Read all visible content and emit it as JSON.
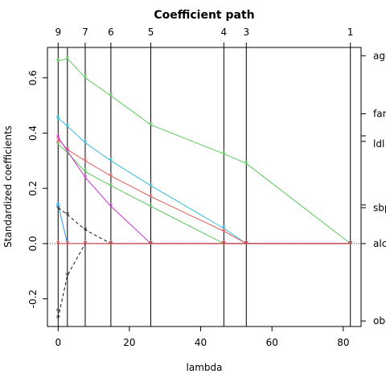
{
  "chart_data": {
    "type": "line",
    "title": "Coefficient path",
    "xlabel": "lambda",
    "ylabel": "Standardized coefficients",
    "xlim": [
      -3,
      85
    ],
    "ylim": [
      -0.3,
      0.71
    ],
    "x_ticks": [
      0,
      20,
      40,
      60,
      80
    ],
    "y_ticks": [
      -0.2,
      0.0,
      0.2,
      0.4,
      0.6
    ],
    "y_tick_labels": [
      "-0.2",
      "0.0",
      "0.2",
      "0.4",
      "0.6"
    ],
    "x_tick_labels": [
      "0",
      "20",
      "40",
      "60",
      "80"
    ],
    "breakpoints": [
      0,
      2.6,
      7.6,
      14.8,
      26,
      46.5,
      52.8,
      82
    ],
    "top_ticks": [
      {
        "lambda": 0,
        "label": "9"
      },
      {
        "lambda": 7.6,
        "label": "7"
      },
      {
        "lambda": 14.8,
        "label": "6"
      },
      {
        "lambda": 26,
        "label": "5"
      },
      {
        "lambda": 46.5,
        "label": "4"
      },
      {
        "lambda": 52.8,
        "label": "3"
      },
      {
        "lambda": 82,
        "label": "1"
      }
    ],
    "zero_line": true,
    "right_labels": [
      {
        "text": "age",
        "y": 0.68
      },
      {
        "text": "fam",
        "y": 0.47
      },
      {
        "text": "ldl",
        "y": 0.36
      },
      {
        "text": "sbp",
        "y": 0.13
      },
      {
        "text": "alc",
        "y": 0.0
      },
      {
        "text": "obe",
        "y": -0.28
      }
    ],
    "right_ticks": [
      0.68,
      0.47,
      0.39,
      0.37,
      0.14,
      0.13,
      0.0,
      -0.28
    ],
    "series": [
      {
        "name": "age",
        "color": "#5ac85a",
        "x": [
          0,
          2.6,
          7.6,
          14.8,
          26,
          46.5,
          52.8,
          82
        ],
        "y": [
          0.66,
          0.67,
          0.6,
          0.535,
          0.43,
          0.325,
          0.29,
          0.0
        ]
      },
      {
        "color": "#33bbd8",
        "x": [
          0,
          2.6,
          7.6,
          14.8,
          26,
          46.5,
          52.8,
          82
        ],
        "y": [
          0.455,
          0.425,
          0.365,
          0.3,
          0.21,
          0.055,
          0.0,
          0.0
        ]
      },
      {
        "color": "#e06060",
        "x": [
          0,
          2.6,
          7.6,
          14.8,
          26,
          46.5,
          52.8,
          82
        ],
        "y": [
          0.38,
          0.34,
          0.3,
          0.245,
          0.17,
          0.045,
          0.0,
          0.0
        ]
      },
      {
        "color": "#5ac85a",
        "x": [
          0,
          2.6,
          7.6,
          14.8,
          26,
          46.5,
          52.8,
          82
        ],
        "y": [
          0.36,
          0.33,
          0.26,
          0.21,
          0.135,
          0.0,
          0.0,
          0.0
        ]
      },
      {
        "color": "#cc33cc",
        "x": [
          0,
          2.6,
          7.6,
          14.8,
          26,
          46.5,
          52.8,
          82
        ],
        "y": [
          0.385,
          0.335,
          0.24,
          0.135,
          0.0,
          0.0,
          0.0,
          0.0
        ]
      },
      {
        "color": "#3399ee",
        "x": [
          0,
          2.6,
          7.6,
          14.8,
          26,
          46.5,
          52.8,
          82
        ],
        "y": [
          0.14,
          0.0,
          0.0,
          0.0,
          0.0,
          0.0,
          0.0,
          0.0
        ]
      },
      {
        "color": "#111111",
        "dash": "4,3",
        "x": [
          0,
          2.6,
          7.6,
          14.8,
          26,
          46.5,
          52.8,
          82
        ],
        "y": [
          0.13,
          0.105,
          0.05,
          0.0,
          0.0,
          0.0,
          0.0,
          0.0
        ]
      },
      {
        "color": "#111111",
        "dash": "4,3",
        "x": [
          0,
          2.6,
          7.6,
          14.8,
          26,
          46.5,
          52.8,
          82
        ],
        "y": [
          -0.27,
          -0.115,
          0.0,
          0.0,
          0.0,
          0.0,
          0.0,
          0.0
        ]
      },
      {
        "color": "#ee4444",
        "x": [
          0,
          2.6,
          7.6,
          14.8,
          26,
          46.5,
          52.8,
          82
        ],
        "y": [
          0.0,
          0.0,
          0.0,
          0.0,
          0.0,
          0.0,
          0.0,
          0.0
        ]
      }
    ],
    "extra_points": [
      {
        "x": 0,
        "y": -0.245,
        "color": "#111111"
      },
      {
        "x": 0,
        "y": 0.135,
        "color": "#33bbd8"
      },
      {
        "x": 0,
        "y": 0.365,
        "color": "#e06060"
      },
      {
        "x": 0,
        "y": 0.45,
        "color": "#33bbd8"
      }
    ]
  }
}
